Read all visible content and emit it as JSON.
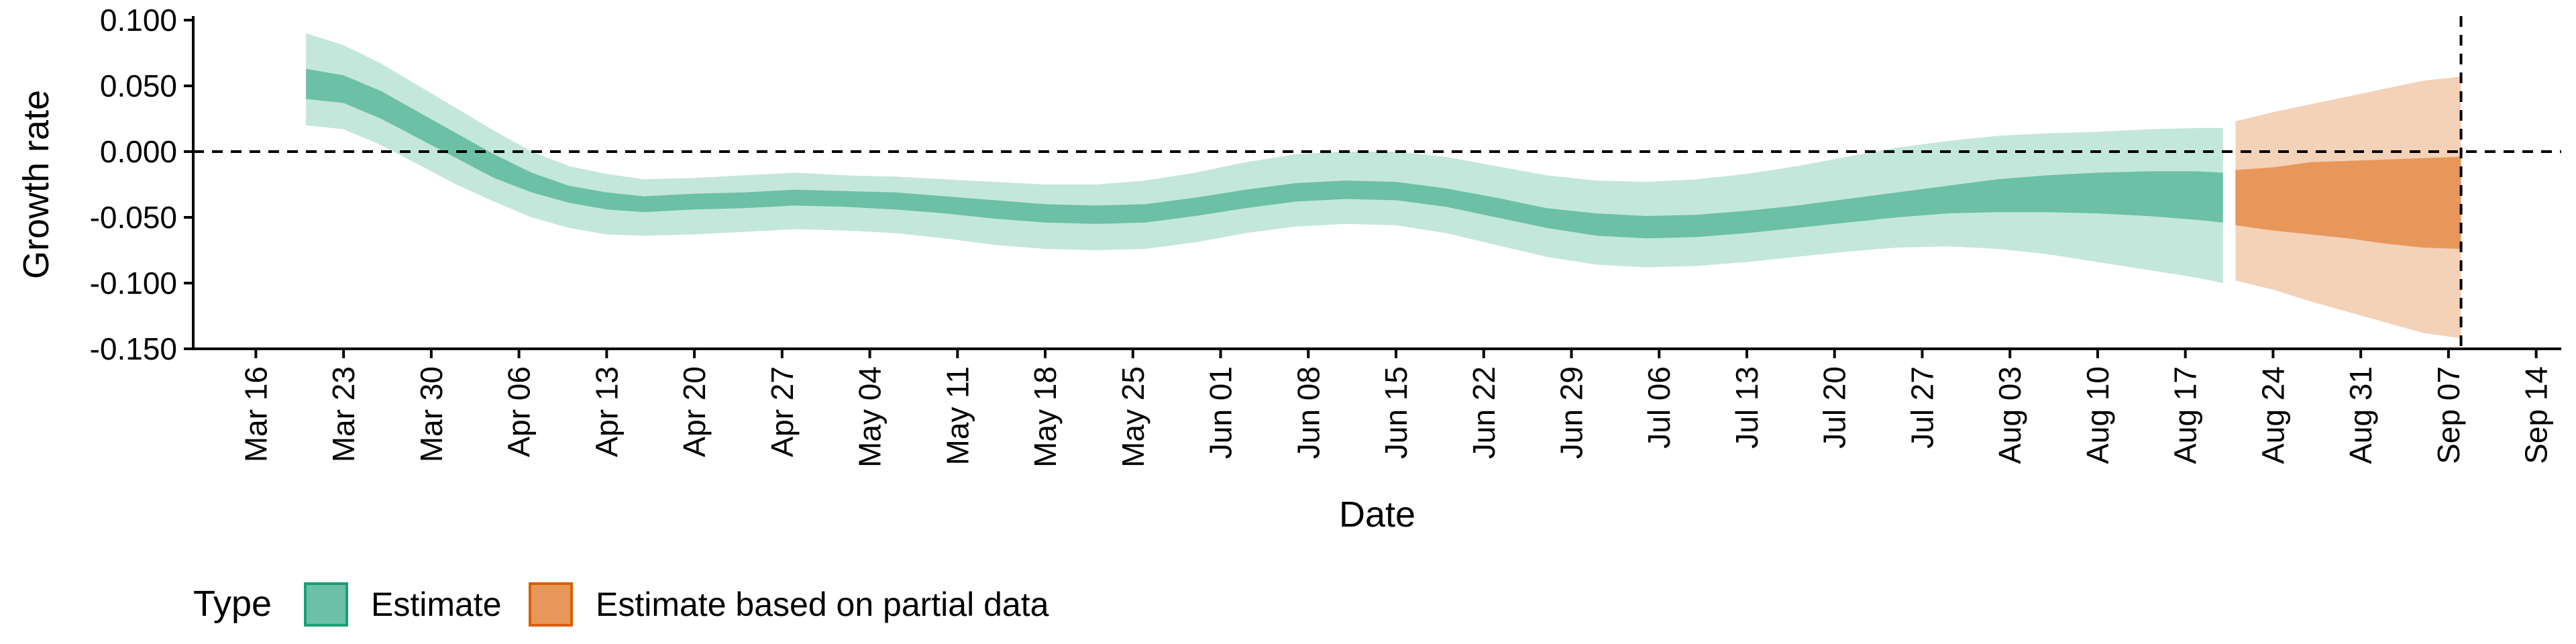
{
  "chart_data": {
    "type": "area",
    "xlabel": "Date",
    "ylabel": "Growth rate",
    "ylim": [
      -0.15,
      0.1
    ],
    "xlim": [
      "2020-03-11",
      "2020-09-16"
    ],
    "yticks": [
      {
        "value": 0.1,
        "label": "0.100"
      },
      {
        "value": 0.05,
        "label": "0.050"
      },
      {
        "value": 0.0,
        "label": "0.000"
      },
      {
        "value": -0.05,
        "label": "-0.050"
      },
      {
        "value": -0.1,
        "label": "-0.100"
      },
      {
        "value": -0.15,
        "label": "-0.150"
      }
    ],
    "xticks": [
      {
        "date": "2020-03-16",
        "label": "Mar 16"
      },
      {
        "date": "2020-03-23",
        "label": "Mar 23"
      },
      {
        "date": "2020-03-30",
        "label": "Mar 30"
      },
      {
        "date": "2020-04-06",
        "label": "Apr 06"
      },
      {
        "date": "2020-04-13",
        "label": "Apr 13"
      },
      {
        "date": "2020-04-20",
        "label": "Apr 20"
      },
      {
        "date": "2020-04-27",
        "label": "Apr 27"
      },
      {
        "date": "2020-05-04",
        "label": "May 04"
      },
      {
        "date": "2020-05-11",
        "label": "May 11"
      },
      {
        "date": "2020-05-18",
        "label": "May 18"
      },
      {
        "date": "2020-05-25",
        "label": "May 25"
      },
      {
        "date": "2020-06-01",
        "label": "Jun 01"
      },
      {
        "date": "2020-06-08",
        "label": "Jun 08"
      },
      {
        "date": "2020-06-15",
        "label": "Jun 15"
      },
      {
        "date": "2020-06-22",
        "label": "Jun 22"
      },
      {
        "date": "2020-06-29",
        "label": "Jun 29"
      },
      {
        "date": "2020-07-06",
        "label": "Jul 06"
      },
      {
        "date": "2020-07-13",
        "label": "Jul 13"
      },
      {
        "date": "2020-07-20",
        "label": "Jul 20"
      },
      {
        "date": "2020-07-27",
        "label": "Jul 27"
      },
      {
        "date": "2020-08-03",
        "label": "Aug 03"
      },
      {
        "date": "2020-08-10",
        "label": "Aug 10"
      },
      {
        "date": "2020-08-17",
        "label": "Aug 17"
      },
      {
        "date": "2020-08-24",
        "label": "Aug 24"
      },
      {
        "date": "2020-08-31",
        "label": "Aug 31"
      },
      {
        "date": "2020-09-07",
        "label": "Sep 07"
      },
      {
        "date": "2020-09-14",
        "label": "Sep 14"
      }
    ],
    "hline": 0,
    "vline_date": "2020-09-08",
    "legend": {
      "title": "Type",
      "position": "bottom-left",
      "entries": [
        {
          "label": "Estimate",
          "fill": "#6cc0a5",
          "border": "#1b9e77"
        },
        {
          "label": "Estimate based on partial data",
          "fill": "#e8975a",
          "border": "#d95f02"
        }
      ]
    },
    "series": [
      {
        "name": "Estimate",
        "color": "#66c2a5",
        "colors": {
          "outer": "#c4e7db",
          "inner": "#6cc0a5"
        },
        "points": [
          {
            "date": "2020-03-20",
            "lo90": 0.02,
            "lo50": 0.04,
            "hi50": 0.063,
            "hi90": 0.09
          },
          {
            "date": "2020-03-23",
            "lo90": 0.017,
            "lo50": 0.037,
            "hi50": 0.058,
            "hi90": 0.081
          },
          {
            "date": "2020-03-26",
            "lo90": 0.005,
            "lo50": 0.025,
            "hi50": 0.046,
            "hi90": 0.067
          },
          {
            "date": "2020-03-29",
            "lo90": -0.01,
            "lo50": 0.01,
            "hi50": 0.03,
            "hi90": 0.05
          },
          {
            "date": "2020-04-01",
            "lo90": -0.025,
            "lo50": -0.005,
            "hi50": 0.014,
            "hi90": 0.033
          },
          {
            "date": "2020-04-04",
            "lo90": -0.038,
            "lo50": -0.02,
            "hi50": -0.002,
            "hi90": 0.016
          },
          {
            "date": "2020-04-07",
            "lo90": -0.05,
            "lo50": -0.031,
            "hi50": -0.016,
            "hi90": 0.0
          },
          {
            "date": "2020-04-10",
            "lo90": -0.058,
            "lo50": -0.039,
            "hi50": -0.026,
            "hi90": -0.011
          },
          {
            "date": "2020-04-13",
            "lo90": -0.063,
            "lo50": -0.044,
            "hi50": -0.031,
            "hi90": -0.017
          },
          {
            "date": "2020-04-16",
            "lo90": -0.064,
            "lo50": -0.046,
            "hi50": -0.034,
            "hi90": -0.021
          },
          {
            "date": "2020-04-20",
            "lo90": -0.063,
            "lo50": -0.044,
            "hi50": -0.032,
            "hi90": -0.02
          },
          {
            "date": "2020-04-24",
            "lo90": -0.061,
            "lo50": -0.043,
            "hi50": -0.031,
            "hi90": -0.018
          },
          {
            "date": "2020-04-28",
            "lo90": -0.059,
            "lo50": -0.041,
            "hi50": -0.029,
            "hi90": -0.016
          },
          {
            "date": "2020-05-02",
            "lo90": -0.06,
            "lo50": -0.042,
            "hi50": -0.03,
            "hi90": -0.018
          },
          {
            "date": "2020-05-06",
            "lo90": -0.062,
            "lo50": -0.044,
            "hi50": -0.031,
            "hi90": -0.019
          },
          {
            "date": "2020-05-10",
            "lo90": -0.066,
            "lo50": -0.047,
            "hi50": -0.034,
            "hi90": -0.021
          },
          {
            "date": "2020-05-14",
            "lo90": -0.071,
            "lo50": -0.051,
            "hi50": -0.037,
            "hi90": -0.023
          },
          {
            "date": "2020-05-18",
            "lo90": -0.074,
            "lo50": -0.054,
            "hi50": -0.04,
            "hi90": -0.025
          },
          {
            "date": "2020-05-22",
            "lo90": -0.075,
            "lo50": -0.055,
            "hi50": -0.041,
            "hi90": -0.025
          },
          {
            "date": "2020-05-26",
            "lo90": -0.074,
            "lo50": -0.054,
            "hi50": -0.04,
            "hi90": -0.022
          },
          {
            "date": "2020-05-30",
            "lo90": -0.069,
            "lo50": -0.049,
            "hi50": -0.035,
            "hi90": -0.016
          },
          {
            "date": "2020-06-03",
            "lo90": -0.062,
            "lo50": -0.043,
            "hi50": -0.029,
            "hi90": -0.008
          },
          {
            "date": "2020-06-07",
            "lo90": -0.057,
            "lo50": -0.038,
            "hi50": -0.024,
            "hi90": -0.002
          },
          {
            "date": "2020-06-11",
            "lo90": -0.055,
            "lo50": -0.036,
            "hi50": -0.022,
            "hi90": 0.0
          },
          {
            "date": "2020-06-15",
            "lo90": -0.056,
            "lo50": -0.037,
            "hi50": -0.023,
            "hi90": 0.0
          },
          {
            "date": "2020-06-19",
            "lo90": -0.062,
            "lo50": -0.042,
            "hi50": -0.028,
            "hi90": -0.004
          },
          {
            "date": "2020-06-23",
            "lo90": -0.071,
            "lo50": -0.05,
            "hi50": -0.035,
            "hi90": -0.011
          },
          {
            "date": "2020-06-27",
            "lo90": -0.08,
            "lo50": -0.058,
            "hi50": -0.043,
            "hi90": -0.018
          },
          {
            "date": "2020-07-01",
            "lo90": -0.086,
            "lo50": -0.064,
            "hi50": -0.047,
            "hi90": -0.022
          },
          {
            "date": "2020-07-05",
            "lo90": -0.088,
            "lo50": -0.066,
            "hi50": -0.049,
            "hi90": -0.023
          },
          {
            "date": "2020-07-09",
            "lo90": -0.087,
            "lo50": -0.065,
            "hi50": -0.048,
            "hi90": -0.021
          },
          {
            "date": "2020-07-13",
            "lo90": -0.084,
            "lo50": -0.062,
            "hi50": -0.045,
            "hi90": -0.017
          },
          {
            "date": "2020-07-17",
            "lo90": -0.08,
            "lo50": -0.058,
            "hi50": -0.041,
            "hi90": -0.011
          },
          {
            "date": "2020-07-21",
            "lo90": -0.076,
            "lo50": -0.054,
            "hi50": -0.036,
            "hi90": -0.004
          },
          {
            "date": "2020-07-25",
            "lo90": -0.073,
            "lo50": -0.05,
            "hi50": -0.031,
            "hi90": 0.003
          },
          {
            "date": "2020-07-29",
            "lo90": -0.072,
            "lo50": -0.047,
            "hi50": -0.026,
            "hi90": 0.008
          },
          {
            "date": "2020-08-02",
            "lo90": -0.074,
            "lo50": -0.046,
            "hi50": -0.021,
            "hi90": 0.012
          },
          {
            "date": "2020-08-06",
            "lo90": -0.078,
            "lo50": -0.046,
            "hi50": -0.018,
            "hi90": 0.014
          },
          {
            "date": "2020-08-10",
            "lo90": -0.084,
            "lo50": -0.047,
            "hi50": -0.016,
            "hi90": 0.015
          },
          {
            "date": "2020-08-14",
            "lo90": -0.09,
            "lo50": -0.049,
            "hi50": -0.015,
            "hi90": 0.017
          },
          {
            "date": "2020-08-18",
            "lo90": -0.096,
            "lo50": -0.052,
            "hi50": -0.015,
            "hi90": 0.018
          },
          {
            "date": "2020-08-20",
            "lo90": -0.1,
            "lo50": -0.054,
            "hi50": -0.016,
            "hi90": 0.018
          }
        ]
      },
      {
        "name": "Estimate based on partial data",
        "color": "#fc8d62",
        "colors": {
          "outer": "#f4d2b8",
          "inner": "#e8975a"
        },
        "points": [
          {
            "date": "2020-08-21",
            "lo90": -0.098,
            "lo50": -0.056,
            "hi50": -0.014,
            "hi90": 0.023
          },
          {
            "date": "2020-08-24",
            "lo90": -0.105,
            "lo50": -0.06,
            "hi50": -0.012,
            "hi90": 0.03
          },
          {
            "date": "2020-08-27",
            "lo90": -0.114,
            "lo50": -0.063,
            "hi50": -0.008,
            "hi90": 0.036
          },
          {
            "date": "2020-08-30",
            "lo90": -0.122,
            "lo50": -0.066,
            "hi50": -0.007,
            "hi90": 0.042
          },
          {
            "date": "2020-09-02",
            "lo90": -0.13,
            "lo50": -0.07,
            "hi50": -0.006,
            "hi90": 0.048
          },
          {
            "date": "2020-09-05",
            "lo90": -0.138,
            "lo50": -0.073,
            "hi50": -0.005,
            "hi90": 0.054
          },
          {
            "date": "2020-09-08",
            "lo90": -0.142,
            "lo50": -0.074,
            "hi50": -0.004,
            "hi90": 0.057
          }
        ]
      }
    ]
  }
}
